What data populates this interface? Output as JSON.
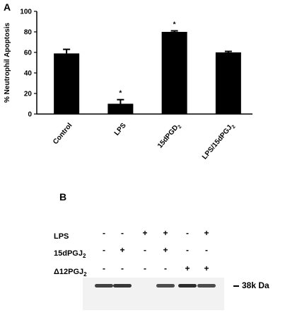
{
  "panel_a_label": "A",
  "panel_b_label": "B",
  "chart_data": {
    "type": "bar",
    "categories": [
      "Control",
      "LPS",
      "15dPGD2",
      "LPS/15dPGJ2"
    ],
    "category_display": [
      {
        "main": "Control",
        "sub": "",
        "tail": ""
      },
      {
        "main": "LPS",
        "sub": "",
        "tail": ""
      },
      {
        "main": "15dPGD",
        "sub": "2",
        "tail": ""
      },
      {
        "main": "LPS/15dPGJ",
        "sub": "2",
        "tail": ""
      }
    ],
    "values": [
      59,
      10,
      80,
      60
    ],
    "errors": [
      4,
      4,
      1,
      1
    ],
    "significance": [
      "",
      "*",
      "*",
      ""
    ],
    "ylabel": "% Neutrophil Apoptosis",
    "ylim": [
      0,
      100
    ],
    "yticks": [
      0,
      20,
      40,
      60,
      80,
      100
    ],
    "bar_color": "#000000"
  },
  "blot": {
    "rows": [
      {
        "label": "LPS",
        "sub": "",
        "signs": [
          "-",
          "-",
          "+",
          "+",
          "-",
          "+"
        ]
      },
      {
        "label": "15dPGJ",
        "sub": "2",
        "signs": [
          "-",
          "+",
          "-",
          "+",
          "-",
          "-"
        ]
      },
      {
        "label": "Δ12PGJ",
        "sub": "2",
        "signs": [
          "-",
          "-",
          "-",
          "-",
          "+",
          "+"
        ]
      }
    ],
    "marker_label": "38k Da",
    "band_intensity": [
      0.85,
      0.9,
      0,
      0.8,
      0.95,
      0.8
    ]
  }
}
